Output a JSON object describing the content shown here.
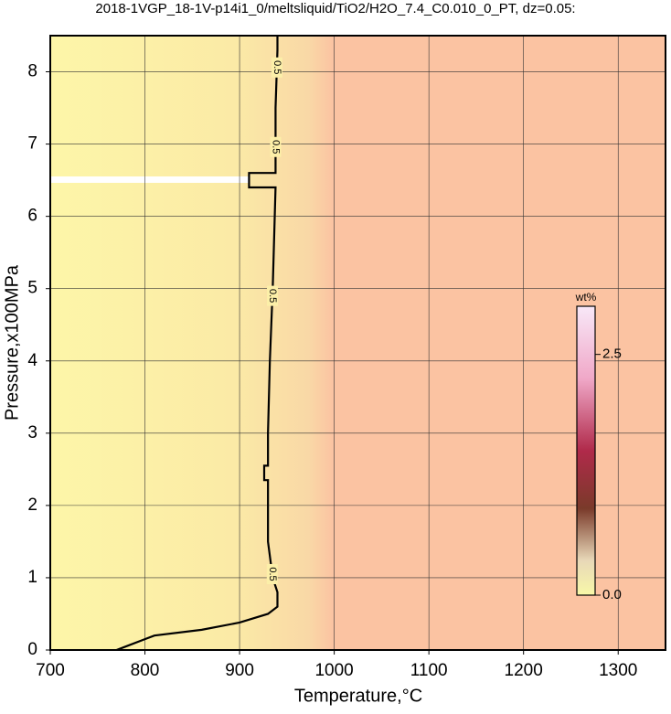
{
  "chart_data": {
    "type": "contour",
    "title": "2018-1VGP_18-1V-p14i1_0/meltsliquid/TiO2/H2O_7.4_C0.010_0_PT, dz=0.05:",
    "xlabel": "Temperature,°C",
    "ylabel": "Pressure,x100MPa",
    "xlim": [
      700,
      1350
    ],
    "ylim": [
      0,
      8.5
    ],
    "xticks": [
      700,
      800,
      900,
      1000,
      1100,
      1200,
      1300
    ],
    "yticks": [
      0,
      1,
      2,
      3,
      4,
      5,
      6,
      7,
      8
    ],
    "grid": true,
    "series": [
      {
        "name": "0.5",
        "color": "#000000",
        "x": [
          940,
          940,
          938,
          938,
          910,
          910,
          938,
          935,
          932,
          930,
          930,
          926,
          926,
          930,
          930,
          935,
          940,
          940,
          930,
          900,
          860,
          810,
          800,
          780,
          770
        ],
        "y": [
          8.5,
          8.3,
          7.5,
          6.6,
          6.6,
          6.4,
          6.4,
          5,
          4,
          3,
          2.55,
          2.55,
          2.35,
          2.35,
          1.5,
          1.0,
          0.8,
          0.6,
          0.5,
          0.38,
          0.28,
          0.2,
          0.15,
          0.05,
          0
        ]
      }
    ],
    "colorbar": {
      "label": "wt%",
      "lim": [
        0,
        3.0
      ],
      "ticks": [
        {
          "value": 0,
          "label": "0.0"
        },
        {
          "value": 2.5,
          "label": "2.5"
        }
      ]
    }
  }
}
